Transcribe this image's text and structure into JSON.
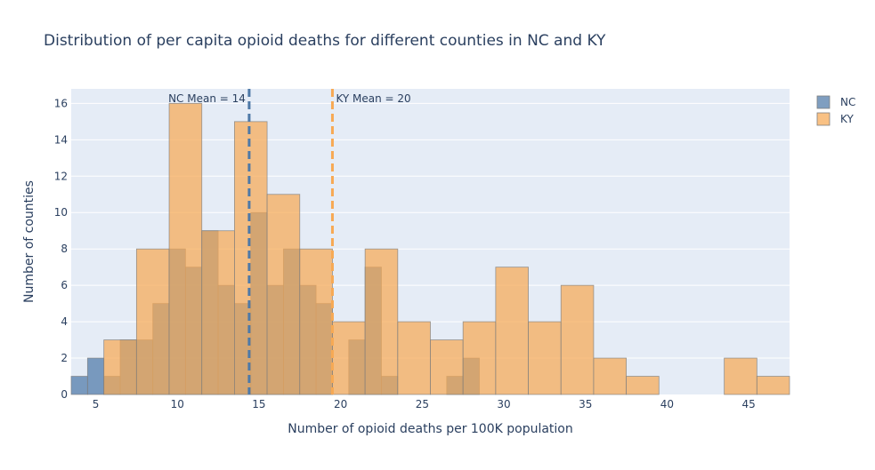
{
  "chart_data": {
    "type": "bar",
    "title": "Distribution of per capita opioid deaths for different counties in NC and KY",
    "xlabel": "Number of opioid deaths per 100K population",
    "ylabel": "Number of counties",
    "xlim": [
      3.5,
      47.5
    ],
    "ylim": [
      0,
      16.8
    ],
    "x_ticks": [
      5,
      10,
      15,
      20,
      25,
      30,
      35,
      40,
      45
    ],
    "y_ticks": [
      0,
      2,
      4,
      6,
      8,
      10,
      12,
      14,
      16
    ],
    "grid": true,
    "legend_position": "top-right",
    "series": [
      {
        "name": "NC",
        "color": "#4e79a7",
        "bin_width": 1,
        "bins": [
          {
            "x0": 3.5,
            "x1": 4.5,
            "count": 1
          },
          {
            "x0": 4.5,
            "x1": 5.5,
            "count": 2
          },
          {
            "x0": 5.5,
            "x1": 6.5,
            "count": 1
          },
          {
            "x0": 6.5,
            "x1": 7.5,
            "count": 3
          },
          {
            "x0": 7.5,
            "x1": 8.5,
            "count": 3
          },
          {
            "x0": 8.5,
            "x1": 9.5,
            "count": 5
          },
          {
            "x0": 9.5,
            "x1": 10.5,
            "count": 8
          },
          {
            "x0": 10.5,
            "x1": 11.5,
            "count": 7
          },
          {
            "x0": 11.5,
            "x1": 12.5,
            "count": 9
          },
          {
            "x0": 12.5,
            "x1": 13.5,
            "count": 6
          },
          {
            "x0": 13.5,
            "x1": 14.5,
            "count": 5
          },
          {
            "x0": 14.5,
            "x1": 15.5,
            "count": 10
          },
          {
            "x0": 15.5,
            "x1": 16.5,
            "count": 6
          },
          {
            "x0": 16.5,
            "x1": 17.5,
            "count": 8
          },
          {
            "x0": 17.5,
            "x1": 18.5,
            "count": 6
          },
          {
            "x0": 18.5,
            "x1": 19.5,
            "count": 5
          },
          {
            "x0": 20.5,
            "x1": 21.5,
            "count": 3
          },
          {
            "x0": 21.5,
            "x1": 22.5,
            "count": 7
          },
          {
            "x0": 22.5,
            "x1": 23.5,
            "count": 1
          },
          {
            "x0": 26.5,
            "x1": 27.5,
            "count": 1
          },
          {
            "x0": 27.5,
            "x1": 28.5,
            "count": 2
          }
        ]
      },
      {
        "name": "KY",
        "color": "#f7a954",
        "bin_width": 2,
        "bins": [
          {
            "x0": 5.5,
            "x1": 7.5,
            "count": 3
          },
          {
            "x0": 7.5,
            "x1": 9.5,
            "count": 8
          },
          {
            "x0": 9.5,
            "x1": 11.5,
            "count": 16
          },
          {
            "x0": 11.5,
            "x1": 13.5,
            "count": 9
          },
          {
            "x0": 13.5,
            "x1": 15.5,
            "count": 15
          },
          {
            "x0": 15.5,
            "x1": 17.5,
            "count": 11
          },
          {
            "x0": 17.5,
            "x1": 19.5,
            "count": 8
          },
          {
            "x0": 19.5,
            "x1": 21.5,
            "count": 4
          },
          {
            "x0": 21.5,
            "x1": 23.5,
            "count": 8
          },
          {
            "x0": 23.5,
            "x1": 25.5,
            "count": 4
          },
          {
            "x0": 25.5,
            "x1": 27.5,
            "count": 3
          },
          {
            "x0": 27.5,
            "x1": 29.5,
            "count": 4
          },
          {
            "x0": 29.5,
            "x1": 31.5,
            "count": 7
          },
          {
            "x0": 31.5,
            "x1": 33.5,
            "count": 4
          },
          {
            "x0": 33.5,
            "x1": 35.5,
            "count": 6
          },
          {
            "x0": 35.5,
            "x1": 37.5,
            "count": 2
          },
          {
            "x0": 37.5,
            "x1": 39.5,
            "count": 1
          },
          {
            "x0": 43.5,
            "x1": 45.5,
            "count": 2
          },
          {
            "x0": 45.5,
            "x1": 47.5,
            "count": 1
          }
        ]
      }
    ],
    "mean_lines": [
      {
        "series": "NC",
        "x": 14.4,
        "label": "NC Mean = 14",
        "color": "#4e79a7"
      },
      {
        "series": "KY",
        "x": 19.5,
        "label": "KY Mean = 20",
        "color": "#f7a954"
      }
    ]
  }
}
